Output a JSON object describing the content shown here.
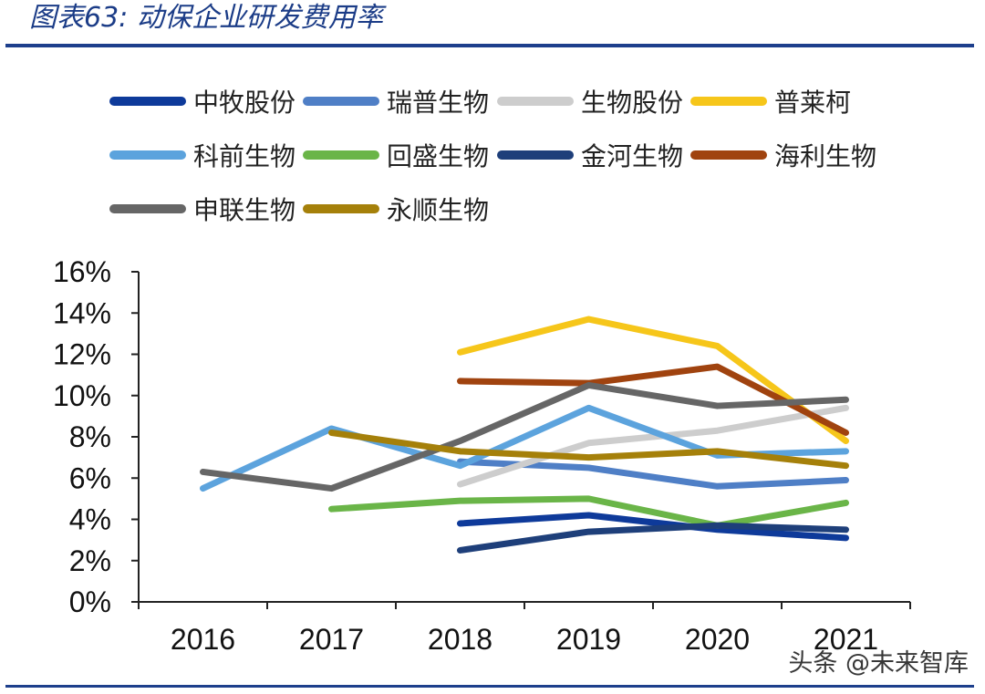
{
  "title": "图表63:  动保企业研发费用率",
  "watermark": "头条 @未来智库",
  "colors": {
    "rule": "#1d3f8c",
    "title": "#1b3c87"
  },
  "chart_data": {
    "type": "line",
    "title": "图表63:  动保企业研发费用率",
    "xlabel": "",
    "ylabel": "",
    "categories": [
      "2016",
      "2017",
      "2018",
      "2019",
      "2020",
      "2021"
    ],
    "ylim": [
      0,
      16
    ],
    "yticks": [
      0,
      2,
      4,
      6,
      8,
      10,
      12,
      14,
      16
    ],
    "ytick_labels": [
      "0%",
      "2%",
      "4%",
      "6%",
      "8%",
      "10%",
      "12%",
      "14%",
      "16%"
    ],
    "legend_position": "top",
    "series": [
      {
        "name": "中牧股份",
        "color": "#0e3a9a",
        "values": [
          null,
          null,
          3.8,
          4.2,
          3.5,
          3.1
        ]
      },
      {
        "name": "瑞普生物",
        "color": "#4f7fc6",
        "values": [
          null,
          null,
          6.8,
          6.5,
          5.6,
          5.9
        ]
      },
      {
        "name": "生物股份",
        "color": "#cdcdcd",
        "values": [
          null,
          null,
          5.7,
          7.7,
          8.3,
          9.4
        ]
      },
      {
        "name": "普莱柯",
        "color": "#f6c61a",
        "values": [
          null,
          null,
          12.1,
          13.7,
          12.4,
          7.8
        ]
      },
      {
        "name": "科前生物",
        "color": "#5ca3dd",
        "values": [
          5.5,
          8.4,
          6.6,
          9.4,
          7.1,
          7.3
        ]
      },
      {
        "name": "回盛生物",
        "color": "#6ab548",
        "values": [
          null,
          4.5,
          4.9,
          5.0,
          3.7,
          4.8
        ]
      },
      {
        "name": "金河生物",
        "color": "#1e3f7a",
        "values": [
          null,
          null,
          2.5,
          3.4,
          3.7,
          3.5
        ]
      },
      {
        "name": "海利生物",
        "color": "#a0430f",
        "values": [
          null,
          null,
          10.7,
          10.6,
          11.4,
          8.2
        ]
      },
      {
        "name": "申联生物",
        "color": "#666666",
        "values": [
          6.3,
          5.5,
          7.8,
          10.5,
          9.5,
          9.8
        ]
      },
      {
        "name": "永顺生物",
        "color": "#a5800a",
        "values": [
          null,
          8.2,
          7.3,
          7.0,
          7.3,
          6.6
        ]
      }
    ]
  }
}
